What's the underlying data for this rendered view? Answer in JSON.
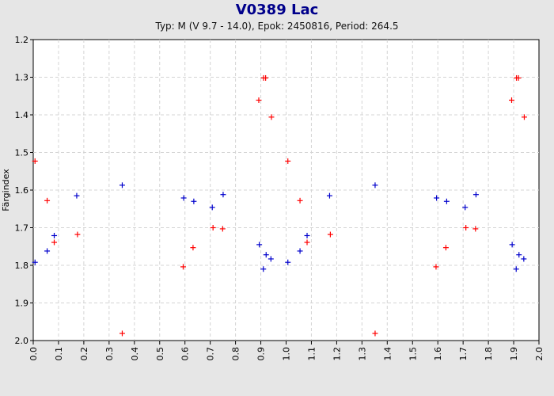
{
  "header": {
    "title": "V0389 Lac",
    "subtitle": "Typ: M (V 9.7 - 14.0), Epok: 2450816, Period: 264.5"
  },
  "chart_data": {
    "type": "scatter",
    "title": "V0389 Lac",
    "subtitle": "Typ: M (V 9.7 - 14.0), Epok: 2450816, Period: 264.5",
    "xlabel": "",
    "ylabel": "Färgindex",
    "xlim": [
      0.0,
      2.0
    ],
    "ylim": [
      1.2,
      2.0
    ],
    "y_inverted": true,
    "grid": true,
    "x_ticks": [
      "0.0",
      "0.1",
      "0.2",
      "0.3",
      "0.4",
      "0.5",
      "0.6",
      "0.7",
      "0.8",
      "0.9",
      "1.0",
      "1.1",
      "1.2",
      "1.3",
      "1.4",
      "1.5",
      "1.6",
      "1.7",
      "1.8",
      "1.9",
      "2.0"
    ],
    "y_ticks": [
      "1.2",
      "1.3",
      "1.4",
      "1.5",
      "1.6",
      "1.7",
      "1.8",
      "1.9",
      "2.0"
    ],
    "series": [
      {
        "color": "#ff0000",
        "marker": "plus",
        "points": [
          [
            0.007,
            1.523
          ],
          [
            0.055,
            1.628
          ],
          [
            0.083,
            1.739
          ],
          [
            0.175,
            1.718
          ],
          [
            0.352,
            1.981
          ],
          [
            0.593,
            1.804
          ],
          [
            0.632,
            1.753
          ],
          [
            0.711,
            1.7
          ],
          [
            0.749,
            1.703
          ],
          [
            0.892,
            1.361
          ],
          [
            0.911,
            1.302
          ],
          [
            0.919,
            1.302
          ],
          [
            0.942,
            1.406
          ],
          [
            1.007,
            1.523
          ],
          [
            1.055,
            1.628
          ],
          [
            1.083,
            1.739
          ],
          [
            1.175,
            1.718
          ],
          [
            1.352,
            1.981
          ],
          [
            1.593,
            1.804
          ],
          [
            1.632,
            1.753
          ],
          [
            1.711,
            1.7
          ],
          [
            1.749,
            1.703
          ],
          [
            1.892,
            1.361
          ],
          [
            1.911,
            1.302
          ],
          [
            1.919,
            1.302
          ],
          [
            1.942,
            1.406
          ]
        ]
      },
      {
        "color": "#0000cc",
        "marker": "plus",
        "points": [
          [
            0.007,
            1.792
          ],
          [
            0.055,
            1.762
          ],
          [
            0.083,
            1.721
          ],
          [
            0.172,
            1.615
          ],
          [
            0.352,
            1.587
          ],
          [
            0.595,
            1.621
          ],
          [
            0.635,
            1.63
          ],
          [
            0.708,
            1.646
          ],
          [
            0.751,
            1.612
          ],
          [
            0.894,
            1.745
          ],
          [
            0.91,
            1.81
          ],
          [
            0.921,
            1.772
          ],
          [
            0.94,
            1.783
          ],
          [
            1.007,
            1.792
          ],
          [
            1.055,
            1.762
          ],
          [
            1.083,
            1.721
          ],
          [
            1.172,
            1.615
          ],
          [
            1.352,
            1.587
          ],
          [
            1.595,
            1.621
          ],
          [
            1.635,
            1.63
          ],
          [
            1.708,
            1.646
          ],
          [
            1.751,
            1.612
          ],
          [
            1.894,
            1.745
          ],
          [
            1.91,
            1.81
          ],
          [
            1.921,
            1.772
          ],
          [
            1.94,
            1.783
          ]
        ]
      }
    ]
  }
}
